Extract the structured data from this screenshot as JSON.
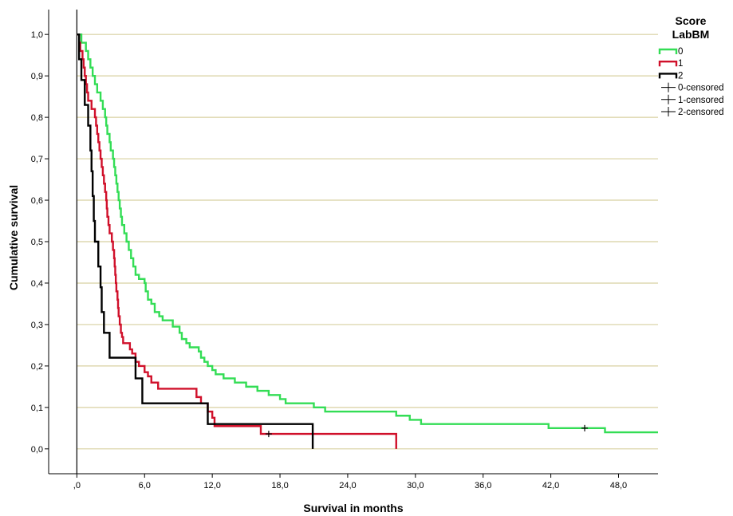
{
  "chart_data": {
    "type": "line",
    "subtype": "kaplan-meier step",
    "title": "",
    "xlabel": "Survival in months",
    "ylabel": "Cumulative survival",
    "xlim": [
      -2.5,
      51.5
    ],
    "ylim": [
      -0.06,
      1.06
    ],
    "x_ticks": [
      0,
      6,
      12,
      18,
      24,
      30,
      36,
      42,
      48
    ],
    "x_tick_labels": [
      ",0",
      "6,0",
      "12,0",
      "18,0",
      "24,0",
      "30,0",
      "36,0",
      "42,0",
      "48,0"
    ],
    "y_ticks": [
      0,
      0.1,
      0.2,
      0.3,
      0.4,
      0.5,
      0.6,
      0.7,
      0.8,
      0.9,
      1.0
    ],
    "y_tick_labels": [
      "0,0",
      "0,1",
      "0,2",
      "0,3",
      "0,4",
      "0,5",
      "0,6",
      "0,7",
      "0,8",
      "0,9",
      "1,0"
    ],
    "grid": "horizontal",
    "grid_color": "#d8d0a0",
    "legend": {
      "title_line1": "Score",
      "title_line2": "LabBM",
      "position": "top-right",
      "entries": [
        {
          "label": "0",
          "kind": "line",
          "color": "#33dd55"
        },
        {
          "label": "1",
          "kind": "line",
          "color": "#d0102a"
        },
        {
          "label": "2",
          "kind": "line",
          "color": "#000000"
        },
        {
          "label": "0-censored",
          "kind": "censor",
          "color": "#000000"
        },
        {
          "label": "1-censored",
          "kind": "censor",
          "color": "#000000"
        },
        {
          "label": "2-censored",
          "kind": "censor",
          "color": "#000000"
        }
      ]
    },
    "series": [
      {
        "name": "0",
        "color": "#33dd55",
        "points": [
          [
            0,
            1.0
          ],
          [
            0.4,
            0.98
          ],
          [
            0.8,
            0.96
          ],
          [
            1.0,
            0.94
          ],
          [
            1.2,
            0.92
          ],
          [
            1.4,
            0.9
          ],
          [
            1.6,
            0.88
          ],
          [
            1.8,
            0.86
          ],
          [
            2.1,
            0.84
          ],
          [
            2.3,
            0.82
          ],
          [
            2.5,
            0.8
          ],
          [
            2.6,
            0.78
          ],
          [
            2.7,
            0.76
          ],
          [
            2.9,
            0.74
          ],
          [
            3.0,
            0.72
          ],
          [
            3.2,
            0.7
          ],
          [
            3.3,
            0.68
          ],
          [
            3.4,
            0.66
          ],
          [
            3.5,
            0.64
          ],
          [
            3.6,
            0.62
          ],
          [
            3.7,
            0.6
          ],
          [
            3.8,
            0.58
          ],
          [
            3.9,
            0.56
          ],
          [
            4.0,
            0.54
          ],
          [
            4.2,
            0.52
          ],
          [
            4.4,
            0.5
          ],
          [
            4.6,
            0.48
          ],
          [
            4.8,
            0.46
          ],
          [
            5.0,
            0.44
          ],
          [
            5.2,
            0.42
          ],
          [
            5.5,
            0.41
          ],
          [
            6.0,
            0.4
          ],
          [
            6.1,
            0.38
          ],
          [
            6.3,
            0.36
          ],
          [
            6.6,
            0.35
          ],
          [
            6.9,
            0.33
          ],
          [
            7.3,
            0.32
          ],
          [
            7.6,
            0.31
          ],
          [
            8.5,
            0.295
          ],
          [
            9.1,
            0.28
          ],
          [
            9.3,
            0.265
          ],
          [
            9.7,
            0.255
          ],
          [
            10.0,
            0.245
          ],
          [
            10.8,
            0.235
          ],
          [
            11.0,
            0.22
          ],
          [
            11.3,
            0.21
          ],
          [
            11.6,
            0.2
          ],
          [
            12.0,
            0.19
          ],
          [
            12.3,
            0.18
          ],
          [
            13.0,
            0.17
          ],
          [
            14.0,
            0.16
          ],
          [
            15.0,
            0.15
          ],
          [
            16.0,
            0.14
          ],
          [
            17.0,
            0.13
          ],
          [
            18.0,
            0.12
          ],
          [
            18.5,
            0.11
          ],
          [
            21.0,
            0.1
          ],
          [
            22.0,
            0.09
          ],
          [
            28.3,
            0.08
          ],
          [
            29.5,
            0.07
          ],
          [
            30.5,
            0.06
          ],
          [
            41.8,
            0.05
          ],
          [
            46.8,
            0.04
          ],
          [
            51.5,
            0.04
          ]
        ],
        "censored": [
          [
            45.0,
            0.05
          ]
        ]
      },
      {
        "name": "1",
        "color": "#d0102a",
        "points": [
          [
            0,
            1.0
          ],
          [
            0.2,
            0.98
          ],
          [
            0.3,
            0.96
          ],
          [
            0.5,
            0.94
          ],
          [
            0.6,
            0.92
          ],
          [
            0.7,
            0.9
          ],
          [
            0.8,
            0.88
          ],
          [
            0.9,
            0.86
          ],
          [
            1.0,
            0.84
          ],
          [
            1.3,
            0.82
          ],
          [
            1.6,
            0.8
          ],
          [
            1.7,
            0.78
          ],
          [
            1.8,
            0.76
          ],
          [
            1.9,
            0.74
          ],
          [
            2.0,
            0.72
          ],
          [
            2.1,
            0.7
          ],
          [
            2.2,
            0.68
          ],
          [
            2.3,
            0.66
          ],
          [
            2.4,
            0.64
          ],
          [
            2.5,
            0.62
          ],
          [
            2.6,
            0.6
          ],
          [
            2.65,
            0.58
          ],
          [
            2.7,
            0.56
          ],
          [
            2.8,
            0.54
          ],
          [
            2.9,
            0.52
          ],
          [
            3.1,
            0.5
          ],
          [
            3.2,
            0.48
          ],
          [
            3.3,
            0.46
          ],
          [
            3.35,
            0.44
          ],
          [
            3.4,
            0.42
          ],
          [
            3.45,
            0.4
          ],
          [
            3.5,
            0.38
          ],
          [
            3.6,
            0.36
          ],
          [
            3.65,
            0.34
          ],
          [
            3.7,
            0.32
          ],
          [
            3.8,
            0.3
          ],
          [
            3.9,
            0.28
          ],
          [
            4.0,
            0.27
          ],
          [
            4.1,
            0.255
          ],
          [
            4.7,
            0.24
          ],
          [
            4.9,
            0.23
          ],
          [
            5.2,
            0.21
          ],
          [
            5.5,
            0.2
          ],
          [
            6.0,
            0.185
          ],
          [
            6.3,
            0.175
          ],
          [
            6.6,
            0.16
          ],
          [
            7.2,
            0.145
          ],
          [
            10.6,
            0.125
          ],
          [
            11.0,
            0.11
          ],
          [
            11.6,
            0.09
          ],
          [
            12.0,
            0.075
          ],
          [
            12.2,
            0.055
          ],
          [
            16.3,
            0.036
          ],
          [
            28.3,
            0.036
          ],
          [
            28.3,
            0.0
          ]
        ],
        "censored": [
          [
            17.0,
            0.036
          ]
        ]
      },
      {
        "name": "2",
        "color": "#000000",
        "points": [
          [
            0,
            1.0
          ],
          [
            0.2,
            0.94
          ],
          [
            0.4,
            0.89
          ],
          [
            0.7,
            0.83
          ],
          [
            1.0,
            0.78
          ],
          [
            1.2,
            0.72
          ],
          [
            1.3,
            0.67
          ],
          [
            1.4,
            0.61
          ],
          [
            1.5,
            0.55
          ],
          [
            1.6,
            0.5
          ],
          [
            1.9,
            0.44
          ],
          [
            2.1,
            0.39
          ],
          [
            2.2,
            0.33
          ],
          [
            2.4,
            0.28
          ],
          [
            2.9,
            0.22
          ],
          [
            5.2,
            0.17
          ],
          [
            5.8,
            0.11
          ],
          [
            11.6,
            0.06
          ],
          [
            20.9,
            0.06
          ],
          [
            20.9,
            0.0
          ]
        ],
        "censored": []
      }
    ]
  }
}
